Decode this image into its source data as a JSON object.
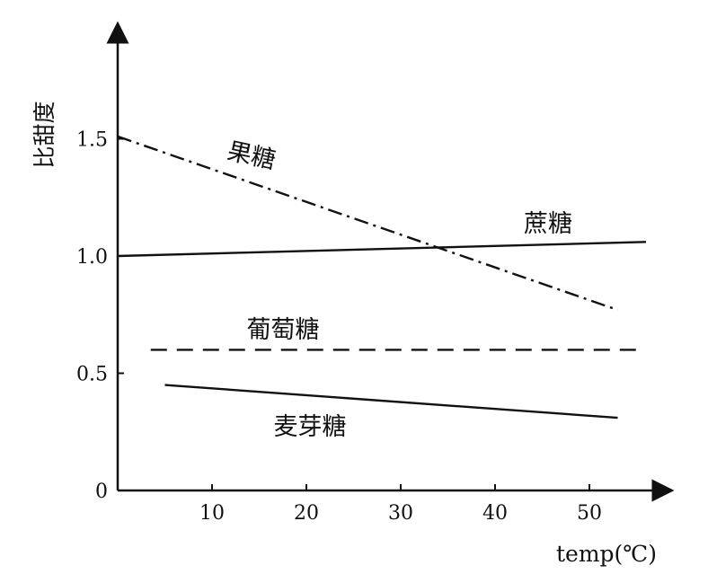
{
  "chart_data": {
    "type": "line",
    "xlabel": "temp(℃)",
    "ylabel": "比甜度",
    "xlim": [
      0,
      56
    ],
    "ylim": [
      0,
      1.9
    ],
    "x_ticks": [
      10,
      20,
      30,
      40,
      50
    ],
    "x_tick_labels": [
      "10",
      "20",
      "30",
      "40",
      "50"
    ],
    "y_ticks": [
      0,
      0.5,
      1.0,
      1.5
    ],
    "y_tick_labels": [
      "0",
      "0.5",
      "1.0",
      "1.5"
    ],
    "grid": false,
    "series": [
      {
        "name": "果糖",
        "style": "dashdot",
        "x": [
          0,
          53
        ],
        "y": [
          1.51,
          0.77
        ]
      },
      {
        "name": "蔗糖",
        "style": "solid",
        "x": [
          0,
          56
        ],
        "y": [
          1.0,
          1.06
        ]
      },
      {
        "name": "葡萄糖",
        "style": "dashed",
        "x": [
          3.5,
          55
        ],
        "y": [
          0.6,
          0.6
        ]
      },
      {
        "name": "麦芽糖",
        "style": "solid",
        "x": [
          5,
          53
        ],
        "y": [
          0.45,
          0.31
        ]
      }
    ]
  }
}
